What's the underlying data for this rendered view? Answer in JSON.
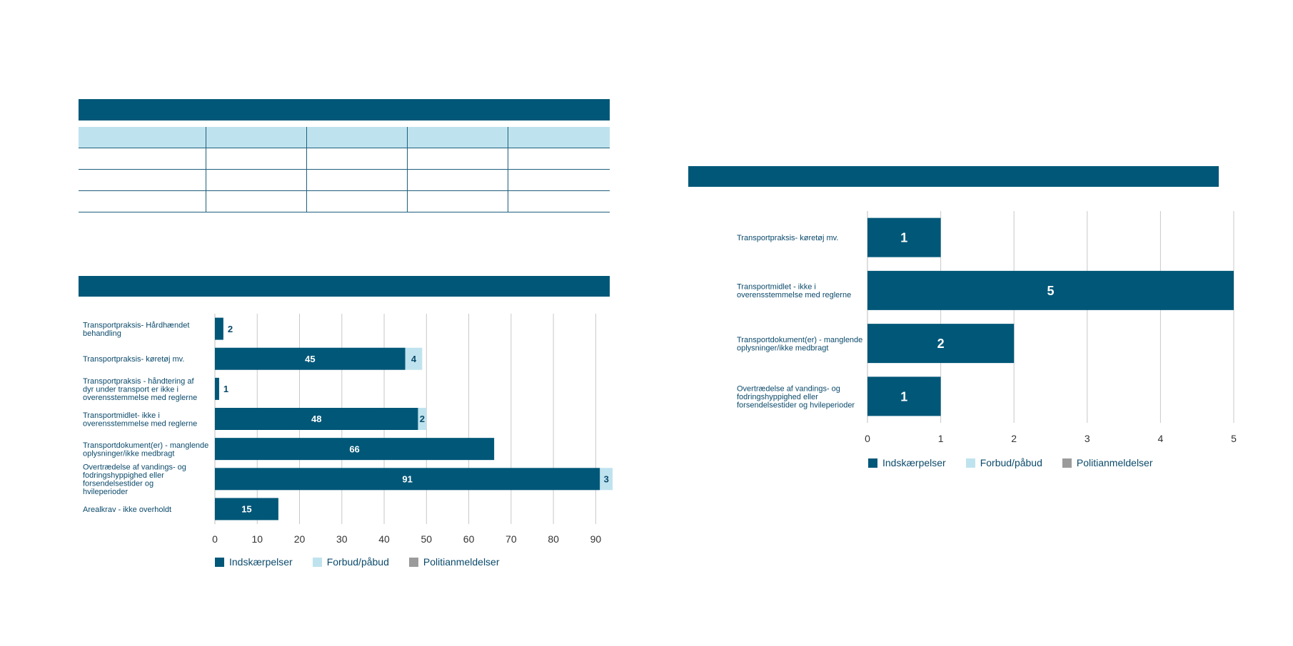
{
  "colors": {
    "header": "#005778",
    "indskaerpelser": "#005778",
    "forbud": "#bfe3ee",
    "politi": "#9b9b9b",
    "grid": "#c8c8c8",
    "table_head": "#bfe3ee"
  },
  "legend": [
    "Indskærpelser",
    "Forbud/påbud",
    "Politianmeldelser"
  ],
  "chart_data": [
    {
      "type": "bar",
      "orientation": "horizontal",
      "stacked": true,
      "categories": [
        "Transportpraksis- Hårdhændet behandling",
        "Transportpraksis- køretøj mv.",
        "Transportpraksis - håndtering af dyr under transport er ikke i overensstemmelse med reglerne",
        "Transportmidlet- ikke i overensstemmelse med reglerne",
        "Transportdokument(er) - manglende oplysninger/ikke medbragt",
        "Overtrædelse af vandings- og fodringshyppighed eller forsendelsestider og hvileperioder",
        "Arealkrav - ikke overholdt"
      ],
      "series": [
        {
          "name": "Indskærpelser",
          "values": [
            2,
            45,
            1,
            48,
            66,
            91,
            15
          ]
        },
        {
          "name": "Forbud/påbud",
          "values": [
            0,
            4,
            0,
            2,
            0,
            3,
            0
          ]
        },
        {
          "name": "Politianmeldelser",
          "values": [
            0,
            0,
            0,
            0,
            0,
            0,
            0
          ]
        }
      ],
      "xlim": [
        0,
        95
      ],
      "xticks": [
        0,
        10,
        20,
        30,
        40,
        50,
        60,
        70,
        80,
        90
      ],
      "grid": true,
      "legend_position": "bottom-left"
    },
    {
      "type": "bar",
      "orientation": "horizontal",
      "stacked": true,
      "categories": [
        "Transportpraksis- køretøj mv.",
        "Transportmidlet - ikke i overensstemmelse med reglerne",
        "Transportdokument(er) - manglende oplysninger/ikke medbragt",
        "Overtrædelse af vandings- og fodringshyppighed eller forsendelsestider og hvileperioder"
      ],
      "series": [
        {
          "name": "Indskærpelser",
          "values": [
            1,
            5,
            2,
            1
          ]
        },
        {
          "name": "Forbud/påbud",
          "values": [
            0,
            0,
            0,
            0
          ]
        },
        {
          "name": "Politianmeldelser",
          "values": [
            0,
            0,
            0,
            0
          ]
        }
      ],
      "xlim": [
        0,
        5
      ],
      "xticks": [
        0,
        1,
        2,
        3,
        4,
        5
      ],
      "grid": true,
      "legend_position": "bottom-left"
    }
  ]
}
